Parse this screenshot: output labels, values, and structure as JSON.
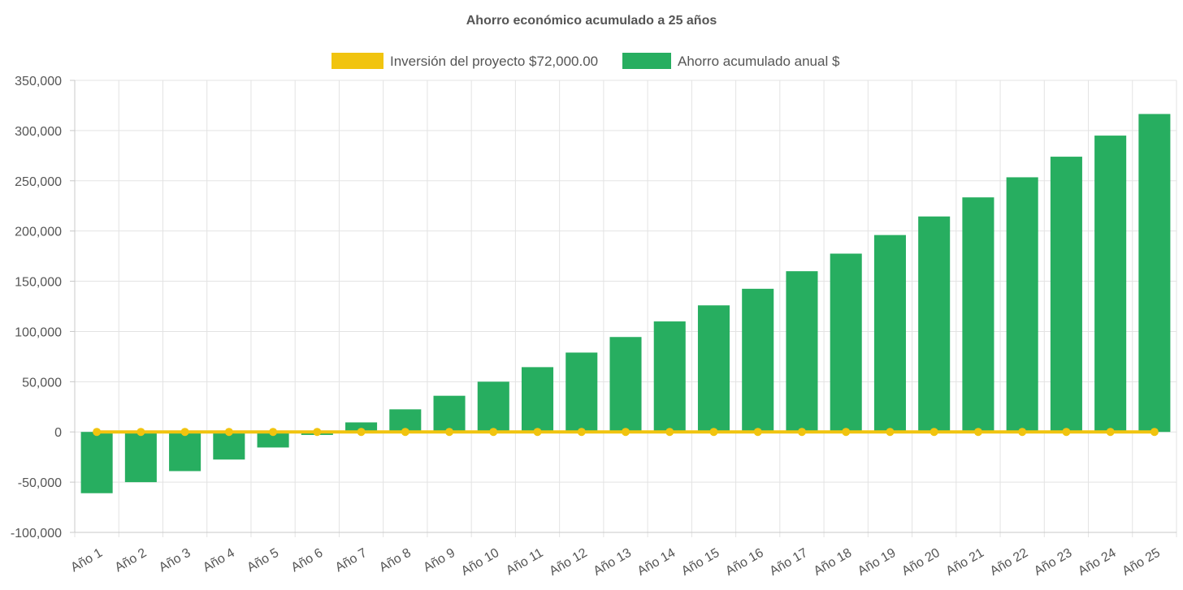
{
  "chart_data": {
    "type": "bar",
    "title": "Ahorro económico acumulado a 25 años",
    "categories": [
      "Año 1",
      "Año 2",
      "Año 3",
      "Año 4",
      "Año 5",
      "Año 6",
      "Año 7",
      "Año 8",
      "Año 9",
      "Año 10",
      "Año 11",
      "Año 12",
      "Año 13",
      "Año 14",
      "Año 15",
      "Año 16",
      "Año 17",
      "Año 18",
      "Año 19",
      "Año 20",
      "Año 21",
      "Año 22",
      "Año 23",
      "Año 24",
      "Año 25"
    ],
    "series": [
      {
        "name": "Inversión del proyecto $72,000.00",
        "type": "line",
        "color": "#f1c40f",
        "values": [
          0,
          0,
          0,
          0,
          0,
          0,
          0,
          0,
          0,
          0,
          0,
          0,
          0,
          0,
          0,
          0,
          0,
          0,
          0,
          0,
          0,
          0,
          0,
          0,
          0
        ]
      },
      {
        "name": "Ahorro acumulado anual $",
        "type": "bar",
        "color": "#27ae60",
        "values": [
          -61000,
          -50000,
          -39000,
          -27500,
          -15500,
          -3000,
          9500,
          22500,
          36000,
          50000,
          64500,
          79000,
          94500,
          110000,
          126000,
          142500,
          160000,
          177500,
          196000,
          214500,
          233500,
          253500,
          274000,
          295000,
          316500
        ]
      }
    ],
    "yticks": [
      "350,000",
      "300,000",
      "250,000",
      "200,000",
      "150,000",
      "100,000",
      "50,000",
      "0",
      "-50,000",
      "-100,000"
    ],
    "ylim": [
      -100000,
      350000
    ],
    "ytick_step": 50000,
    "grid": true,
    "legend_position": "top"
  }
}
